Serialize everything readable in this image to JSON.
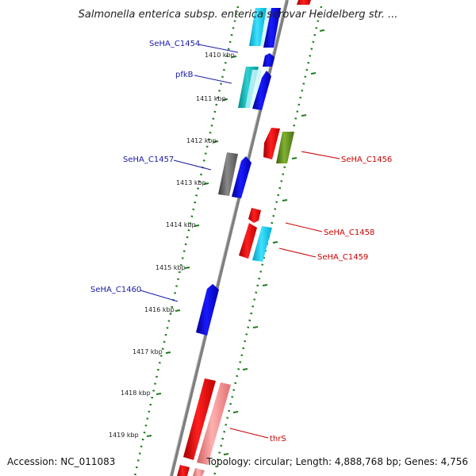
{
  "title": "Salmonella enterica subsp. enterica serovar Heidelberg str. ...",
  "footer": {
    "accession": "Accession: NC_011083",
    "summary": "Topology: circular; Length: 4,888,768 bp; Genes: 4,756"
  },
  "ticks": [
    "1410 kbp",
    "1411 kbp",
    "1412 kbp",
    "1413 kbp",
    "1414 kbp",
    "1415 kbp",
    "1416 kbp",
    "1417 kbp",
    "1418 kbp",
    "1419 kbp"
  ],
  "genes": {
    "SeHA_C1454": "SeHA_C1454",
    "pfkB": "pfkB",
    "SeHA_C1457": "SeHA_C1457",
    "SeHA_C1460": "SeHA_C1460",
    "SeHA_C1456": "SeHA_C1456",
    "SeHA_C1458": "SeHA_C1458",
    "SeHA_C1459": "SeHA_C1459",
    "thrS": "thrS"
  },
  "colors": {
    "backbone": "#7f7f7f",
    "forward_label": "#1a1aa8",
    "reverse_label": "#cc0000",
    "dots": "#1e7a1e"
  }
}
